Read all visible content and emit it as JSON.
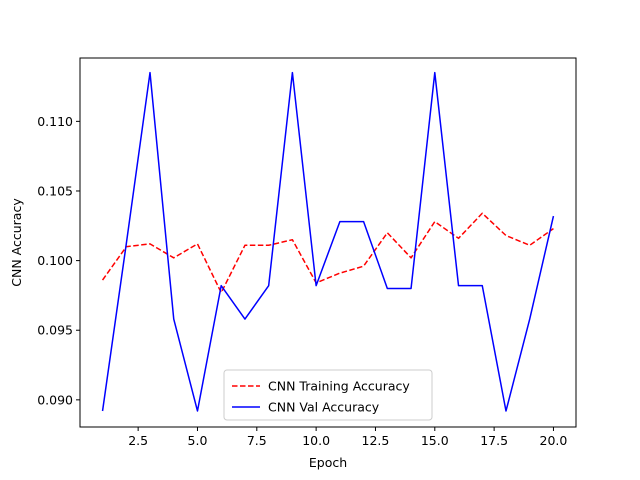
{
  "chart_data": {
    "type": "line",
    "title": "",
    "xlabel": "Epoch",
    "ylabel": "CNN Accuracy",
    "x": [
      1,
      2,
      3,
      4,
      5,
      6,
      7,
      8,
      9,
      10,
      11,
      12,
      13,
      14,
      15,
      16,
      17,
      18,
      19,
      20
    ],
    "xlim": [
      0.05,
      20.95
    ],
    "ylim": [
      0.08805,
      0.11455
    ],
    "xticks": [
      2.5,
      5.0,
      7.5,
      10.0,
      12.5,
      15.0,
      17.5,
      20.0
    ],
    "xtick_labels": [
      "2.5",
      "5.0",
      "7.5",
      "10.0",
      "12.5",
      "15.0",
      "17.5",
      "20.0"
    ],
    "yticks": [
      0.09,
      0.095,
      0.1,
      0.105,
      0.11
    ],
    "ytick_labels": [
      "0.090",
      "0.095",
      "0.100",
      "0.105",
      "0.110"
    ],
    "grid": false,
    "legend_position": "lower-center",
    "series": [
      {
        "name": "CNN Training Accuracy",
        "color": "#ff0000",
        "style": "dashed",
        "values": [
          0.0986,
          0.101,
          0.1012,
          0.1002,
          0.1012,
          0.0977,
          0.1011,
          0.1011,
          0.1015,
          0.0984,
          0.0991,
          0.0996,
          0.102,
          0.1002,
          0.1028,
          0.1016,
          0.1034,
          0.1018,
          0.1011,
          0.1023
        ]
      },
      {
        "name": "CNN Val Accuracy",
        "color": "#0000ff",
        "style": "solid",
        "values": [
          0.0892,
          0.1012,
          0.1135,
          0.0958,
          0.0892,
          0.0982,
          0.0958,
          0.0982,
          0.1135,
          0.0982,
          0.1028,
          0.1028,
          0.098,
          0.098,
          0.1135,
          0.0982,
          0.0982,
          0.0892,
          0.0958,
          0.1032
        ]
      }
    ]
  }
}
